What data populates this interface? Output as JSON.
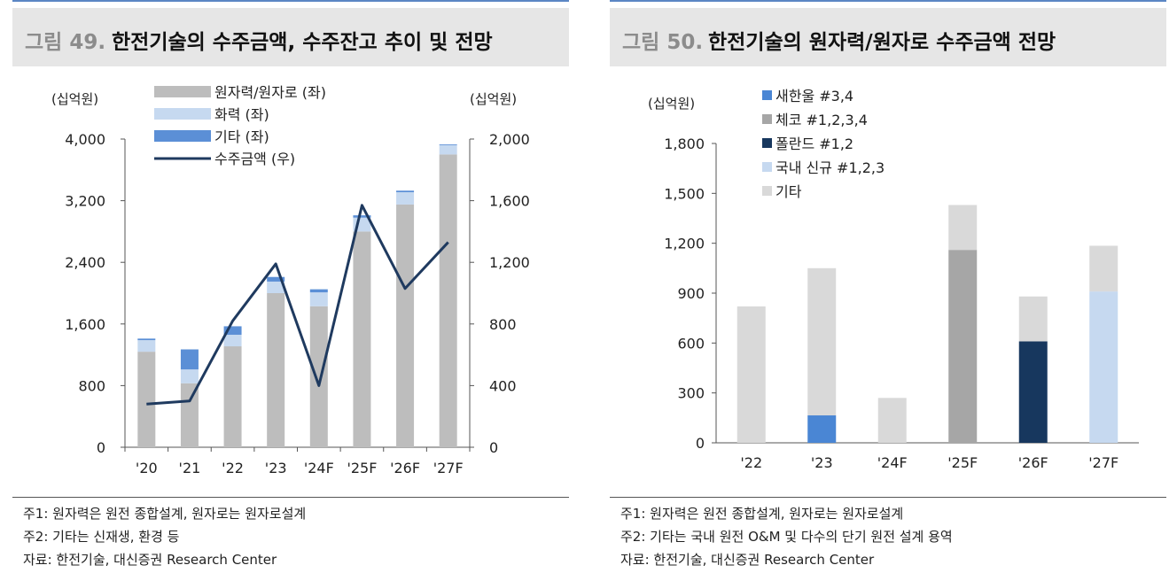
{
  "figure49": {
    "number": "그림 49.",
    "title": "한전기술의 수주금액, 수주잔고 추이 및 전망",
    "notes": [
      "주1: 원자력은 원전 종합설계, 원자로는 원자로설계",
      "주2: 기타는 신재생, 환경 등",
      "자료: 한전기술, 대신증권 Research Center"
    ]
  },
  "figure50": {
    "number": "그림 50.",
    "title": "한전기술의 원자력/원자로 수주금액 전망",
    "notes": [
      "주1: 원자력은 원전 종합설계, 원자로는 원자로설계",
      "주2: 기타는 국내 원전 O&M 및 다수의 단기 원전 설계 용역",
      "자료: 한전기술, 대신증권 Research Center"
    ]
  },
  "chart_data": [
    {
      "type": "bar",
      "stacked": true,
      "categories": [
        "'20",
        "'21",
        "'22",
        "'23",
        "'24F",
        "'25F",
        "'26F",
        "'27F"
      ],
      "left_unit": "(십억원)",
      "right_unit": "(십억원)",
      "ylim_left": [
        0,
        4000
      ],
      "yticks_left": [
        "0",
        "800",
        "1,600",
        "2,400",
        "3,200",
        "4,000"
      ],
      "ylim_right": [
        0,
        2000
      ],
      "yticks_right": [
        "0",
        "400",
        "800",
        "1,200",
        "1,600",
        "2,000"
      ],
      "legend_position": "top-left",
      "series": [
        {
          "name": "원자력/원자로 (좌)",
          "axis": "left",
          "kind": "bar",
          "color": "#bdbdbd",
          "values": [
            1240,
            830,
            1310,
            2000,
            1830,
            2800,
            3150,
            3800
          ]
        },
        {
          "name": "화력 (좌)",
          "axis": "left",
          "kind": "bar",
          "color": "#c6d9f0",
          "values": [
            150,
            180,
            150,
            150,
            180,
            180,
            160,
            120
          ]
        },
        {
          "name": "기타 (좌)",
          "axis": "left",
          "kind": "bar",
          "color": "#5b8fd6",
          "values": [
            20,
            260,
            110,
            60,
            40,
            30,
            20,
            10
          ]
        },
        {
          "name": "수주금액 (우)",
          "axis": "right",
          "kind": "line",
          "color": "#1f3a5f",
          "values": [
            280,
            300,
            820,
            1190,
            400,
            1570,
            1030,
            1330
          ]
        }
      ]
    },
    {
      "type": "bar",
      "stacked": true,
      "categories": [
        "'22",
        "'23",
        "'24F",
        "'25F",
        "'26F",
        "'27F"
      ],
      "left_unit": "(십억원)",
      "ylim": [
        0,
        1800
      ],
      "yticks": [
        "0",
        "300",
        "600",
        "900",
        "1,200",
        "1,500",
        "1,800"
      ],
      "legend_position": "top-left",
      "series": [
        {
          "name": "새한울 #3,4",
          "color": "#4a86d4",
          "values": [
            0,
            165,
            0,
            0,
            0,
            0
          ]
        },
        {
          "name": "체코 #1,2,3,4",
          "color": "#a6a6a6",
          "values": [
            0,
            0,
            0,
            1160,
            0,
            0
          ]
        },
        {
          "name": "폴란드 #1,2",
          "color": "#17375e",
          "values": [
            0,
            0,
            0,
            0,
            610,
            0
          ]
        },
        {
          "name": "국내 신규 #1,2,3",
          "color": "#c6d9f0",
          "values": [
            0,
            0,
            0,
            0,
            0,
            910
          ]
        },
        {
          "name": "기타",
          "color": "#d9d9d9",
          "values": [
            820,
            885,
            270,
            270,
            270,
            275
          ]
        }
      ]
    }
  ]
}
